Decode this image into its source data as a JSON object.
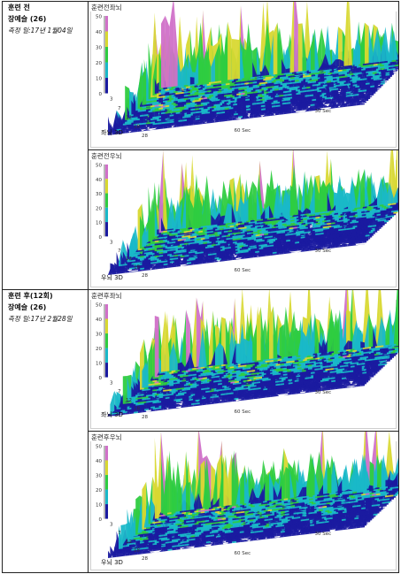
{
  "rows": [
    {
      "line1": "훈련 전",
      "line2": "장예슬 (26)",
      "line3": "측정 일:17년 1월04일",
      "panels": [
        {
          "title": "훈련전좌뇌",
          "corner": "좌뇌 3D"
        },
        {
          "title": "훈련전우뇌",
          "corner": "우뇌 3D"
        }
      ]
    },
    {
      "line1": "훈련 후(12회)",
      "line2": "장예슬 (26)",
      "line3": "측정 일:17년 2월28일",
      "panels": [
        {
          "title": "훈련후좌뇌",
          "corner": "좌뇌 3D"
        },
        {
          "title": "훈련후우뇌",
          "corner": "우뇌 3D"
        }
      ]
    }
  ],
  "axis": {
    "z_ticks": [
      "50",
      "40",
      "30",
      "20",
      "10",
      "0"
    ],
    "depth_ticks": [
      "3",
      "7",
      "12",
      "18",
      "28"
    ],
    "time_ticks": [
      "60 Sec",
      "30 Sec"
    ]
  },
  "colors": {
    "low": "#1a1aa0",
    "mid": "#19b8c8",
    "green": "#2ecc40",
    "yellow": "#d8d830",
    "high": "#d070c8"
  }
}
